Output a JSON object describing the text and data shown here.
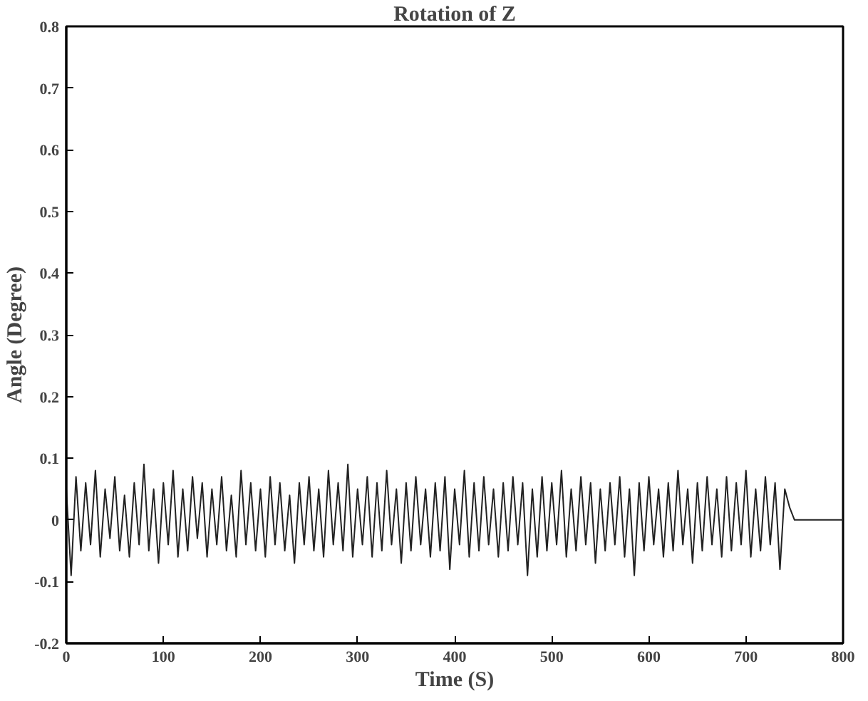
{
  "chart_data": {
    "type": "line",
    "title": "Rotation of Z",
    "xlabel": "Time (S)",
    "ylabel": "Angle (Degree)",
    "xlim": [
      0,
      800
    ],
    "xticks": [
      0,
      100,
      200,
      300,
      400,
      500,
      600,
      700,
      800
    ],
    "ylim": [
      -0.2,
      0.8
    ],
    "yticks": [
      -0.2,
      -0.1,
      0,
      0.1,
      0.2,
      0.3,
      0.4,
      0.5,
      0.6,
      0.7,
      0.8
    ],
    "grid": false,
    "marker": "none",
    "line_style": "solid",
    "series": [
      {
        "color": "#222222",
        "x": [
          0,
          5,
          10,
          15,
          20,
          25,
          30,
          35,
          40,
          45,
          50,
          55,
          60,
          65,
          70,
          75,
          80,
          85,
          90,
          95,
          100,
          105,
          110,
          115,
          120,
          125,
          130,
          135,
          140,
          145,
          150,
          155,
          160,
          165,
          170,
          175,
          180,
          185,
          190,
          195,
          200,
          205,
          210,
          215,
          220,
          225,
          230,
          235,
          240,
          245,
          250,
          255,
          260,
          265,
          270,
          275,
          280,
          285,
          290,
          295,
          300,
          305,
          310,
          315,
          320,
          325,
          330,
          335,
          340,
          345,
          350,
          355,
          360,
          365,
          370,
          375,
          380,
          385,
          390,
          395,
          400,
          405,
          410,
          415,
          420,
          425,
          430,
          435,
          440,
          445,
          450,
          455,
          460,
          465,
          470,
          475,
          480,
          485,
          490,
          495,
          500,
          505,
          510,
          515,
          520,
          525,
          530,
          535,
          540,
          545,
          550,
          555,
          560,
          565,
          570,
          575,
          580,
          585,
          590,
          595,
          600,
          605,
          610,
          615,
          620,
          625,
          630,
          635,
          640,
          645,
          650,
          655,
          660,
          665,
          670,
          675,
          680,
          685,
          690,
          695,
          700,
          705,
          710,
          715,
          720,
          725,
          730,
          735,
          740,
          745,
          750,
          800
        ],
        "values": [
          0.05,
          -0.09,
          0.07,
          -0.05,
          0.06,
          -0.04,
          0.08,
          -0.06,
          0.05,
          -0.03,
          0.07,
          -0.05,
          0.04,
          -0.06,
          0.06,
          -0.04,
          0.09,
          -0.05,
          0.05,
          -0.07,
          0.06,
          -0.04,
          0.08,
          -0.06,
          0.05,
          -0.05,
          0.07,
          -0.03,
          0.06,
          -0.06,
          0.05,
          -0.04,
          0.07,
          -0.05,
          0.04,
          -0.06,
          0.08,
          -0.04,
          0.06,
          -0.05,
          0.05,
          -0.06,
          0.07,
          -0.04,
          0.06,
          -0.05,
          0.04,
          -0.07,
          0.06,
          -0.04,
          0.07,
          -0.05,
          0.05,
          -0.06,
          0.08,
          -0.04,
          0.06,
          -0.05,
          0.09,
          -0.06,
          0.05,
          -0.04,
          0.07,
          -0.06,
          0.06,
          -0.05,
          0.08,
          -0.04,
          0.05,
          -0.07,
          0.06,
          -0.05,
          0.07,
          -0.04,
          0.05,
          -0.06,
          0.06,
          -0.05,
          0.07,
          -0.08,
          0.05,
          -0.04,
          0.08,
          -0.06,
          0.06,
          -0.05,
          0.07,
          -0.04,
          0.05,
          -0.06,
          0.06,
          -0.05,
          0.07,
          -0.04,
          0.06,
          -0.09,
          0.05,
          -0.06,
          0.07,
          -0.05,
          0.06,
          -0.04,
          0.08,
          -0.06,
          0.05,
          -0.05,
          0.07,
          -0.04,
          0.06,
          -0.07,
          0.05,
          -0.05,
          0.06,
          -0.04,
          0.07,
          -0.06,
          0.05,
          -0.09,
          0.06,
          -0.05,
          0.07,
          -0.04,
          0.05,
          -0.06,
          0.06,
          -0.05,
          0.08,
          -0.04,
          0.05,
          -0.07,
          0.06,
          -0.05,
          0.07,
          -0.04,
          0.05,
          -0.06,
          0.07,
          -0.05,
          0.06,
          -0.04,
          0.08,
          -0.06,
          0.05,
          -0.05,
          0.07,
          -0.04,
          0.06,
          -0.08,
          0.05,
          0.02,
          0,
          0
        ]
      }
    ]
  }
}
